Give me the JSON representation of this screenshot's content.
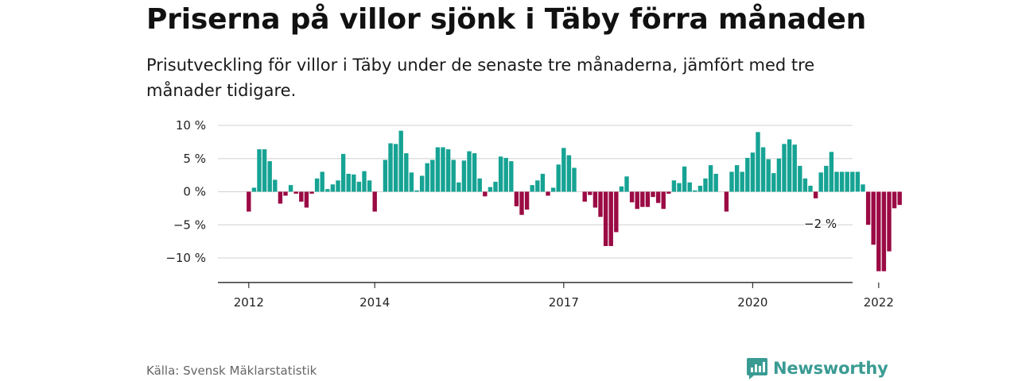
{
  "title": "Priserna på villor sjönk i Täby förra månaden",
  "subtitle": "Prisutveckling för villor i Täby under de senaste tre månaderna, jämfört med tre månader tidigare.",
  "source": "Källa: Svensk Mäklarstatistik",
  "brand": {
    "name": "Newsworthy",
    "icon": "newsworthy-logo-icon",
    "color": "#3a9b93"
  },
  "colors": {
    "positive": "#16a394",
    "negative": "#9b0a44",
    "grid": "#d9d9d9",
    "axis": "#333333"
  },
  "chart_data": {
    "type": "bar",
    "title": "",
    "xlabel": "",
    "ylabel": "",
    "start_month": "2012-01",
    "ylim": [
      -13.7,
      10
    ],
    "y_ticks": [
      10,
      5,
      0,
      -5,
      -10
    ],
    "y_tick_labels": [
      "10 %",
      "5 %",
      "0 %",
      "−5 %",
      "−10 %"
    ],
    "x_ticks": [
      {
        "label": "2012",
        "month": "2012-01"
      },
      {
        "label": "2014",
        "month": "2014-01"
      },
      {
        "label": "2017",
        "month": "2017-01"
      },
      {
        "label": "2020",
        "month": "2020-01"
      },
      {
        "label": "2022",
        "month": "2022-01"
      }
    ],
    "end_label": "−2 %",
    "grid": true,
    "values": [
      -3,
      0.6,
      6.4,
      6.4,
      4.6,
      1.8,
      -1.8,
      -0.6,
      1.0,
      -0.3,
      -1.5,
      -2.4,
      -0.3,
      2.0,
      3.0,
      0.4,
      1.1,
      1.7,
      5.7,
      2.7,
      2.6,
      1.5,
      3.1,
      1.7,
      -3,
      0,
      4.8,
      7.3,
      7.2,
      9.2,
      5.8,
      2.9,
      0.2,
      2.4,
      4.3,
      4.8,
      6.7,
      6.7,
      6.4,
      4.8,
      1.4,
      4.7,
      6.1,
      5.8,
      2.0,
      -0.7,
      0.7,
      1.5,
      5.3,
      5.1,
      4.6,
      -2.2,
      -3.5,
      -2.7,
      1.0,
      1.7,
      2.7,
      -0.6,
      0.6,
      4.1,
      6.6,
      5.5,
      3.6,
      0,
      -1.5,
      -0.5,
      -2.4,
      -3.8,
      -8.2,
      -8.2,
      -6.1,
      0.8,
      2.3,
      -1.6,
      -2.6,
      -2.3,
      -2.3,
      -0.8,
      -1.7,
      -2.6,
      -0.3,
      1.7,
      1.3,
      3.8,
      1.4,
      0.2,
      0.9,
      2.0,
      4.0,
      2.7,
      0,
      -3,
      3.0,
      4.0,
      3.0,
      5.1,
      5.9,
      9.0,
      6.7,
      4.9,
      2.8,
      5.0,
      7.2,
      7.9,
      7.1,
      3.9,
      2.0,
      0.9,
      -1.0,
      2.9,
      3.9,
      6.0,
      3.0,
      3.0,
      3.0,
      3.0,
      3.0,
      1.1,
      -5.0,
      -8.0,
      -12.0,
      -12.0,
      -9.0,
      -2.5,
      -2.0
    ]
  }
}
